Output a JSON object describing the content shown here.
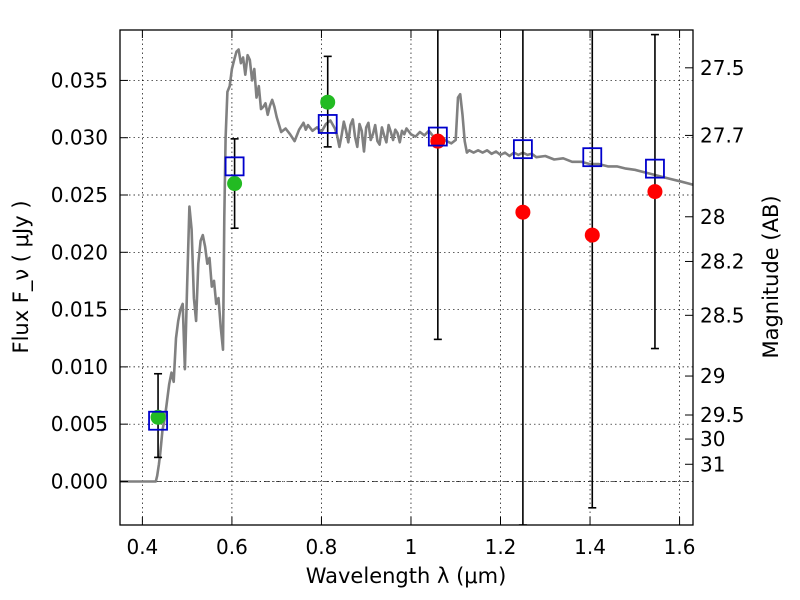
{
  "chart_data": {
    "type": "scatter",
    "xlabel": "Wavelength  λ (μm)",
    "ylabel": "Flux  F_ν  ( μJy )",
    "ylabel_right": "Magnitude (AB)",
    "xlim": [
      0.35,
      1.63
    ],
    "ylim": [
      -0.0038,
      0.0394
    ],
    "grid": true,
    "x_ticks": [
      {
        "value": 0.4,
        "label": "0.4"
      },
      {
        "value": 0.6,
        "label": "0.6"
      },
      {
        "value": 0.8,
        "label": "0.8"
      },
      {
        "value": 1.0,
        "label": "1"
      },
      {
        "value": 1.2,
        "label": "1.2"
      },
      {
        "value": 1.4,
        "label": "1.4"
      },
      {
        "value": 1.6,
        "label": "1.6"
      }
    ],
    "y_ticks": [
      {
        "value": 0.0,
        "label": "0.000"
      },
      {
        "value": 0.005,
        "label": "0.005"
      },
      {
        "value": 0.01,
        "label": "0.010"
      },
      {
        "value": 0.015,
        "label": "0.015"
      },
      {
        "value": 0.02,
        "label": "0.020"
      },
      {
        "value": 0.025,
        "label": "0.025"
      },
      {
        "value": 0.03,
        "label": "0.030"
      },
      {
        "value": 0.035,
        "label": "0.035"
      }
    ],
    "right_ticks": [
      {
        "flux": 0.0361,
        "label": "27.5"
      },
      {
        "flux": 0.0302,
        "label": "27.7"
      },
      {
        "flux": 0.0231,
        "label": "28"
      },
      {
        "flux": 0.0192,
        "label": "28.2"
      },
      {
        "flux": 0.0145,
        "label": "28.5"
      },
      {
        "flux": 0.0092,
        "label": "29"
      },
      {
        "flux": 0.0058,
        "label": "29.5"
      },
      {
        "flux": 0.0037,
        "label": "30"
      },
      {
        "flux": 0.0015,
        "label": "31"
      }
    ],
    "series": [
      {
        "kind": "spectrum",
        "color": "#808080",
        "points": [
          [
            0.35,
            0.0
          ],
          [
            0.43,
            0.0
          ],
          [
            0.433,
            0.0005
          ],
          [
            0.437,
            0.0015
          ],
          [
            0.44,
            0.0025
          ],
          [
            0.445,
            0.0045
          ],
          [
            0.45,
            0.0055
          ],
          [
            0.455,
            0.007
          ],
          [
            0.46,
            0.0085
          ],
          [
            0.465,
            0.0095
          ],
          [
            0.47,
            0.0087
          ],
          [
            0.475,
            0.0125
          ],
          [
            0.48,
            0.014
          ],
          [
            0.485,
            0.015
          ],
          [
            0.49,
            0.0155
          ],
          [
            0.495,
            0.0098
          ],
          [
            0.5,
            0.017
          ],
          [
            0.505,
            0.024
          ],
          [
            0.51,
            0.022
          ],
          [
            0.515,
            0.016
          ],
          [
            0.52,
            0.014
          ],
          [
            0.525,
            0.019
          ],
          [
            0.53,
            0.021
          ],
          [
            0.535,
            0.0215
          ],
          [
            0.54,
            0.0205
          ],
          [
            0.545,
            0.019
          ],
          [
            0.55,
            0.0195
          ],
          [
            0.555,
            0.017
          ],
          [
            0.56,
            0.0175
          ],
          [
            0.565,
            0.0155
          ],
          [
            0.57,
            0.016
          ],
          [
            0.575,
            0.0135
          ],
          [
            0.58,
            0.0115
          ],
          [
            0.583,
            0.023
          ],
          [
            0.586,
            0.03
          ],
          [
            0.59,
            0.034
          ],
          [
            0.595,
            0.0345
          ],
          [
            0.6,
            0.036
          ],
          [
            0.605,
            0.0368
          ],
          [
            0.61,
            0.0375
          ],
          [
            0.615,
            0.0377
          ],
          [
            0.62,
            0.0365
          ],
          [
            0.625,
            0.037
          ],
          [
            0.63,
            0.0355
          ],
          [
            0.635,
            0.0372
          ],
          [
            0.64,
            0.0368
          ],
          [
            0.645,
            0.035
          ],
          [
            0.65,
            0.036
          ],
          [
            0.655,
            0.0335
          ],
          [
            0.66,
            0.0345
          ],
          [
            0.665,
            0.0325
          ],
          [
            0.67,
            0.0327
          ],
          [
            0.675,
            0.033
          ],
          [
            0.68,
            0.032
          ],
          [
            0.685,
            0.0328
          ],
          [
            0.69,
            0.0333
          ],
          [
            0.695,
            0.0327
          ],
          [
            0.7,
            0.0318
          ],
          [
            0.71,
            0.0305
          ],
          [
            0.72,
            0.0308
          ],
          [
            0.73,
            0.0303
          ],
          [
            0.74,
            0.0297
          ],
          [
            0.75,
            0.0307
          ],
          [
            0.76,
            0.0313
          ],
          [
            0.765,
            0.0307
          ],
          [
            0.77,
            0.0311
          ],
          [
            0.78,
            0.0306
          ],
          [
            0.79,
            0.0309
          ],
          [
            0.8,
            0.0305
          ],
          [
            0.81,
            0.0312
          ],
          [
            0.82,
            0.0315
          ],
          [
            0.83,
            0.0308
          ],
          [
            0.835,
            0.0302
          ],
          [
            0.84,
            0.0292
          ],
          [
            0.845,
            0.0302
          ],
          [
            0.85,
            0.0314
          ],
          [
            0.855,
            0.0306
          ],
          [
            0.86,
            0.0296
          ],
          [
            0.865,
            0.0311
          ],
          [
            0.87,
            0.0316
          ],
          [
            0.875,
            0.0301
          ],
          [
            0.88,
            0.0292
          ],
          [
            0.885,
            0.0312
          ],
          [
            0.89,
            0.0306
          ],
          [
            0.895,
            0.0288
          ],
          [
            0.9,
            0.0309
          ],
          [
            0.905,
            0.0313
          ],
          [
            0.91,
            0.0298
          ],
          [
            0.915,
            0.0303
          ],
          [
            0.92,
            0.0311
          ],
          [
            0.925,
            0.0297
          ],
          [
            0.93,
            0.0294
          ],
          [
            0.935,
            0.0309
          ],
          [
            0.94,
            0.0302
          ],
          [
            0.945,
            0.0296
          ],
          [
            0.95,
            0.0311
          ],
          [
            0.955,
            0.0305
          ],
          [
            0.96,
            0.0298
          ],
          [
            0.965,
            0.0307
          ],
          [
            0.97,
            0.0304
          ],
          [
            0.975,
            0.0296
          ],
          [
            0.98,
            0.0306
          ],
          [
            0.985,
            0.0303
          ],
          [
            0.99,
            0.0308
          ],
          [
            1.0,
            0.0303
          ],
          [
            1.01,
            0.0301
          ],
          [
            1.02,
            0.0305
          ],
          [
            1.03,
            0.0302
          ],
          [
            1.04,
            0.0306
          ],
          [
            1.05,
            0.0301
          ],
          [
            1.06,
            0.0298
          ],
          [
            1.07,
            0.03
          ],
          [
            1.08,
            0.0297
          ],
          [
            1.09,
            0.0295
          ],
          [
            1.1,
            0.0298
          ],
          [
            1.105,
            0.0335
          ],
          [
            1.11,
            0.0338
          ],
          [
            1.115,
            0.032
          ],
          [
            1.12,
            0.0297
          ],
          [
            1.125,
            0.0287
          ],
          [
            1.13,
            0.0289
          ],
          [
            1.14,
            0.0287
          ],
          [
            1.15,
            0.0289
          ],
          [
            1.16,
            0.0287
          ],
          [
            1.17,
            0.0289
          ],
          [
            1.18,
            0.0286
          ],
          [
            1.19,
            0.0288
          ],
          [
            1.2,
            0.0285
          ],
          [
            1.21,
            0.0287
          ],
          [
            1.22,
            0.0284
          ],
          [
            1.23,
            0.0287
          ],
          [
            1.24,
            0.0285
          ],
          [
            1.25,
            0.0287
          ],
          [
            1.26,
            0.0285
          ],
          [
            1.27,
            0.0286
          ],
          [
            1.28,
            0.0283
          ],
          [
            1.3,
            0.0284
          ],
          [
            1.32,
            0.0281
          ],
          [
            1.34,
            0.0282
          ],
          [
            1.36,
            0.0279
          ],
          [
            1.38,
            0.0279
          ],
          [
            1.4,
            0.0277
          ],
          [
            1.42,
            0.0277
          ],
          [
            1.44,
            0.0275
          ],
          [
            1.46,
            0.0275
          ],
          [
            1.48,
            0.0273
          ],
          [
            1.5,
            0.0272
          ],
          [
            1.52,
            0.027
          ],
          [
            1.54,
            0.0268
          ],
          [
            1.56,
            0.0266
          ],
          [
            1.58,
            0.0264
          ],
          [
            1.6,
            0.0262
          ],
          [
            1.62,
            0.026
          ],
          [
            1.63,
            0.0259
          ]
        ]
      },
      {
        "kind": "model-photometry",
        "marker": "square",
        "color": "#0000cc",
        "points": [
          [
            0.435,
            0.0053
          ],
          [
            0.606,
            0.0275
          ],
          [
            0.814,
            0.0312
          ],
          [
            1.06,
            0.0301
          ],
          [
            1.25,
            0.029
          ],
          [
            1.405,
            0.0283
          ],
          [
            1.545,
            0.0273
          ]
        ]
      },
      {
        "kind": "detections",
        "marker": "circle",
        "color": "#22bb22",
        "points": [
          {
            "x": 0.435,
            "y": 0.0056,
            "err_low": 0.0021,
            "err_high": 0.0094
          },
          {
            "x": 0.606,
            "y": 0.026,
            "err_low": 0.0221,
            "err_high": 0.0299
          },
          {
            "x": 0.814,
            "y": 0.0331,
            "err_low": 0.0292,
            "err_high": 0.0371
          }
        ]
      },
      {
        "kind": "non-detections",
        "marker": "circle",
        "color": "#ff0000",
        "points": [
          {
            "x": 1.06,
            "y": 0.0297,
            "err_low": 0.0124,
            "err_high": 0.04
          },
          {
            "x": 1.25,
            "y": 0.0235,
            "err_low": -0.0038,
            "err_high": 0.04
          },
          {
            "x": 1.405,
            "y": 0.0215,
            "err_low": -0.0023,
            "err_high": 0.04
          },
          {
            "x": 1.545,
            "y": 0.0253,
            "err_low": 0.0116,
            "err_high": 0.039
          }
        ]
      }
    ]
  }
}
